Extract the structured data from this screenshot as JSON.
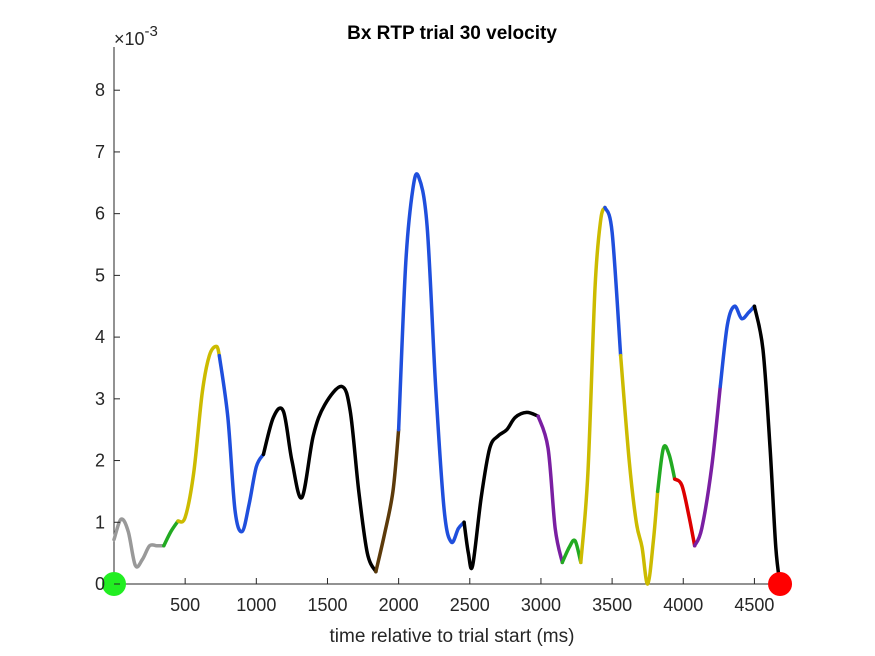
{
  "chart_data": {
    "type": "line",
    "title": "Bx  RTP trial 30 velocity",
    "xlabel": "time relative to trial start (ms)",
    "ylabel": "",
    "y_exponent_label": {
      "base": "×10",
      "exp": "-3"
    },
    "xlim": [
      0,
      4750
    ],
    "ylim": [
      0,
      0.0087
    ],
    "xticks": [
      500,
      1000,
      1500,
      2000,
      2500,
      3000,
      3500,
      4000,
      4500
    ],
    "xtick_labels": [
      "500",
      "1000",
      "1500",
      "2000",
      "2500",
      "3000",
      "3500",
      "4000",
      "4500"
    ],
    "yticks": [
      0,
      0.001,
      0.002,
      0.003,
      0.004,
      0.005,
      0.006,
      0.007,
      0.008
    ],
    "ytick_labels": [
      "0",
      "1",
      "2",
      "3",
      "4",
      "5",
      "6",
      "7",
      "8"
    ],
    "grid": false,
    "series": [
      {
        "name": "gray",
        "color": "#999999",
        "points": [
          [
            0,
            0.00072
          ],
          [
            50,
            0.00105
          ],
          [
            100,
            0.00085
          ],
          [
            150,
            0.0003
          ],
          [
            200,
            0.0004
          ],
          [
            250,
            0.00062
          ],
          [
            300,
            0.00062
          ],
          [
            350,
            0.00062
          ]
        ]
      },
      {
        "name": "green",
        "color": "#22aa22",
        "points": [
          [
            350,
            0.00062
          ],
          [
            400,
            0.00085
          ],
          [
            450,
            0.00102
          ]
        ]
      },
      {
        "name": "yellow",
        "color": "#ccbb00",
        "points": [
          [
            450,
            0.00102
          ],
          [
            500,
            0.00108
          ],
          [
            560,
            0.0018
          ],
          [
            620,
            0.0031
          ],
          [
            670,
            0.0037
          ],
          [
            720,
            0.00385
          ],
          [
            740,
            0.0037
          ]
        ]
      },
      {
        "name": "blue",
        "color": "#1f4fdd",
        "points": [
          [
            740,
            0.0037
          ],
          [
            800,
            0.0027
          ],
          [
            850,
            0.0012
          ],
          [
            900,
            0.00085
          ],
          [
            950,
            0.0013
          ],
          [
            1000,
            0.0019
          ],
          [
            1050,
            0.0021
          ]
        ]
      },
      {
        "name": "black",
        "color": "#000000",
        "points": [
          [
            1050,
            0.0021
          ],
          [
            1120,
            0.0027
          ],
          [
            1190,
            0.0028
          ],
          [
            1250,
            0.002
          ],
          [
            1320,
            0.0014
          ],
          [
            1400,
            0.0024
          ],
          [
            1480,
            0.0029
          ],
          [
            1600,
            0.0032
          ],
          [
            1660,
            0.0028
          ],
          [
            1720,
            0.0015
          ],
          [
            1780,
            0.0005
          ],
          [
            1840,
            0.0002
          ]
        ]
      },
      {
        "name": "brown",
        "color": "#5c3a0a",
        "points": [
          [
            1840,
            0.0002
          ],
          [
            1900,
            0.0008
          ],
          [
            1960,
            0.0015
          ],
          [
            2000,
            0.0025
          ]
        ]
      },
      {
        "name": "blue",
        "color": "#1f4fdd",
        "points": [
          [
            2000,
            0.0025
          ],
          [
            2050,
            0.0052
          ],
          [
            2100,
            0.0064
          ],
          [
            2140,
            0.0066
          ],
          [
            2200,
            0.0058
          ],
          [
            2260,
            0.0032
          ],
          [
            2320,
            0.0012
          ],
          [
            2370,
            0.00068
          ],
          [
            2420,
            0.0009
          ],
          [
            2460,
            0.001
          ]
        ]
      },
      {
        "name": "black",
        "color": "#000000",
        "points": [
          [
            2460,
            0.001
          ],
          [
            2490,
            0.0005
          ],
          [
            2520,
            0.0003
          ],
          [
            2580,
            0.0014
          ],
          [
            2640,
            0.0022
          ],
          [
            2700,
            0.0024
          ],
          [
            2760,
            0.0025
          ],
          [
            2820,
            0.0027
          ],
          [
            2900,
            0.00278
          ],
          [
            2980,
            0.00272
          ]
        ]
      },
      {
        "name": "purple",
        "color": "#7a1fa2",
        "points": [
          [
            2980,
            0.00272
          ],
          [
            3050,
            0.0022
          ],
          [
            3100,
            0.0009
          ],
          [
            3150,
            0.00035
          ]
        ]
      },
      {
        "name": "green",
        "color": "#22aa22",
        "points": [
          [
            3150,
            0.00035
          ],
          [
            3200,
            0.0006
          ],
          [
            3240,
            0.0007
          ],
          [
            3280,
            0.00035
          ]
        ]
      },
      {
        "name": "yellow",
        "color": "#ccbb00",
        "points": [
          [
            3280,
            0.00035
          ],
          [
            3330,
            0.0018
          ],
          [
            3380,
            0.0048
          ],
          [
            3420,
            0.0059
          ],
          [
            3450,
            0.0061
          ]
        ]
      },
      {
        "name": "blue",
        "color": "#1f4fdd",
        "points": [
          [
            3450,
            0.0061
          ],
          [
            3500,
            0.0057
          ],
          [
            3560,
            0.0037
          ]
        ]
      },
      {
        "name": "yellow",
        "color": "#ccbb00",
        "points": [
          [
            3560,
            0.0037
          ],
          [
            3620,
            0.002
          ],
          [
            3670,
            0.001
          ],
          [
            3710,
            0.0006
          ],
          [
            3750,
            0.0
          ],
          [
            3790,
            0.0007
          ],
          [
            3820,
            0.0015
          ]
        ]
      },
      {
        "name": "green",
        "color": "#22aa22",
        "points": [
          [
            3820,
            0.0015
          ],
          [
            3860,
            0.0022
          ],
          [
            3900,
            0.0021
          ],
          [
            3940,
            0.0017
          ]
        ]
      },
      {
        "name": "red",
        "color": "#dd0000",
        "points": [
          [
            3940,
            0.0017
          ],
          [
            3990,
            0.0016
          ],
          [
            4040,
            0.0011
          ],
          [
            4080,
            0.00062
          ]
        ]
      },
      {
        "name": "purple",
        "color": "#7a1fa2",
        "points": [
          [
            4080,
            0.00062
          ],
          [
            4130,
            0.0009
          ],
          [
            4200,
            0.0019
          ],
          [
            4260,
            0.0032
          ]
        ]
      },
      {
        "name": "blue",
        "color": "#1f4fdd",
        "points": [
          [
            4260,
            0.0032
          ],
          [
            4310,
            0.0042
          ],
          [
            4360,
            0.0045
          ],
          [
            4410,
            0.0043
          ],
          [
            4460,
            0.0044
          ],
          [
            4500,
            0.0045
          ]
        ]
      },
      {
        "name": "black",
        "color": "#000000",
        "points": [
          [
            4500,
            0.0045
          ],
          [
            4560,
            0.0038
          ],
          [
            4610,
            0.0022
          ],
          [
            4650,
            0.0006
          ],
          [
            4680,
            0.0
          ]
        ]
      }
    ],
    "markers": [
      {
        "name": "start-marker",
        "x": 0,
        "y": 0,
        "color": "#22ee22"
      },
      {
        "name": "end-marker",
        "x": 4680,
        "y": 0,
        "color": "#ff0000"
      }
    ]
  }
}
